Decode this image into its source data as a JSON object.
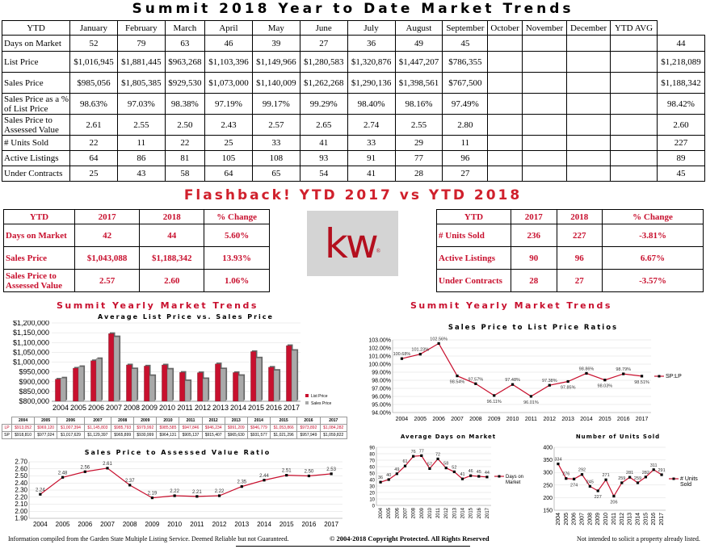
{
  "title": "Summit 2018 Year to Date Market Trends",
  "main_table": {
    "headers": [
      "YTD",
      "January",
      "February",
      "March",
      "April",
      "May",
      "June",
      "July",
      "August",
      "September",
      "October",
      "November",
      "December",
      "YTD AVG"
    ],
    "rows": [
      {
        "label": "Days on Market",
        "cells": [
          "52",
          "79",
          "63",
          "46",
          "39",
          "27",
          "36",
          "49",
          "45",
          "",
          "",
          "",
          ""
        ],
        "avg": "44"
      },
      {
        "label": "List Price",
        "cells": [
          "$1,016,945",
          "$1,881,445",
          "$963,268",
          "$1,103,396",
          "$1,149,966",
          "$1,280,583",
          "$1,320,876",
          "$1,447,207",
          "$786,355",
          "",
          "",
          "",
          ""
        ],
        "avg": "$1,218,089"
      },
      {
        "label": "Sales Price",
        "cells": [
          "$985,056",
          "$1,805,385",
          "$929,530",
          "$1,073,000",
          "$1,140,009",
          "$1,262,268",
          "$1,290,136",
          "$1,398,561",
          "$767,500",
          "",
          "",
          "",
          ""
        ],
        "avg": "$1,188,342"
      },
      {
        "label": "Sales Price as a % of List Price",
        "cells": [
          "98.63%",
          "97.03%",
          "98.38%",
          "97.19%",
          "99.17%",
          "99.29%",
          "98.40%",
          "98.16%",
          "97.49%",
          "",
          "",
          "",
          ""
        ],
        "avg": "98.42%"
      },
      {
        "label": "Sales Price to Assessed Value",
        "cells": [
          "2.61",
          "2.55",
          "2.50",
          "2.43",
          "2.57",
          "2.65",
          "2.74",
          "2.55",
          "2.80",
          "",
          "",
          "",
          ""
        ],
        "avg": "2.60"
      },
      {
        "label": "# Units Sold",
        "cells": [
          "22",
          "11",
          "22",
          "25",
          "33",
          "41",
          "33",
          "29",
          "11",
          "",
          "",
          "",
          ""
        ],
        "avg": "227"
      },
      {
        "label": "Active Listings",
        "cells": [
          "64",
          "86",
          "81",
          "105",
          "108",
          "93",
          "91",
          "77",
          "96",
          "",
          "",
          "",
          ""
        ],
        "avg": "89"
      },
      {
        "label": "Under Contracts",
        "cells": [
          "25",
          "43",
          "58",
          "64",
          "65",
          "54",
          "41",
          "28",
          "27",
          "",
          "",
          "",
          ""
        ],
        "avg": "45"
      }
    ]
  },
  "flashback_title": "Flashback!  YTD 2017 vs YTD 2018",
  "fb_left": {
    "headers": [
      "YTD",
      "2017",
      "2018",
      "% Change"
    ],
    "rows": [
      [
        "Days on Market",
        "42",
        "44",
        "5.60%"
      ],
      [
        "Sales Price",
        "$1,043,088",
        "$1,188,342",
        "13.93%"
      ],
      [
        "Sales Price to Assessed Value",
        "2.57",
        "2.60",
        "1.06%"
      ]
    ]
  },
  "fb_right": {
    "headers": [
      "YTD",
      "2017",
      "2018",
      "% Change"
    ],
    "rows": [
      [
        "# Units Sold",
        "236",
        "227",
        "-3.81%"
      ],
      [
        "Active Listings",
        "90",
        "96",
        "6.67%"
      ],
      [
        "Under Contracts",
        "28",
        "27",
        "-3.57%"
      ]
    ]
  },
  "logo": {
    "text": "kw",
    "color": "#b40f1e"
  },
  "section_left": "Summit Yearly Market Trends",
  "section_right": "Summit Yearly Market Trends",
  "footer": {
    "left": "Information compiled from the Garden State Multiple Listing Service.  Deemed Reliable but not Guaranteed.",
    "center": "© 2004-2018 Copyright Protected.  All Rights Reserved",
    "right": "Not intended to solicit a property already listed."
  },
  "chart_data": [
    {
      "type": "bar",
      "title": "Average List Price vs. Sales Price",
      "categories": [
        "2004",
        "2005",
        "2006",
        "2007",
        "2008",
        "2009",
        "2010",
        "2011",
        "2012",
        "2013",
        "2014",
        "2015",
        "2016",
        "2017"
      ],
      "series": [
        {
          "name": "List Price",
          "values": [
            913052,
            969120,
            1007394,
            1145803,
            985793,
            979992,
            985585,
            947846,
            946234,
            991209,
            946779,
            1053866,
            973892,
            1084282
          ],
          "display": [
            "$913,052",
            "$969,120",
            "$1,007,394",
            "$1,145,803",
            "$985,793",
            "$979,992",
            "$985,585",
            "$947,846",
            "$946,234",
            "$991,209",
            "$946,779",
            "$1,053,866",
            "$973,892",
            "$1,084,282"
          ],
          "color": "#c8102e"
        },
        {
          "name": "Sales Price",
          "values": [
            918810,
            977024,
            1017629,
            1129397,
            965899,
            930999,
            964131,
            905137,
            915407,
            965630,
            931577,
            1021296,
            957949,
            1059822
          ],
          "display": [
            "$918,810",
            "$977,024",
            "$1,017,629",
            "$1,129,397",
            "$965,899",
            "$930,999",
            "$964,131",
            "$905,137",
            "$915,407",
            "$965,630",
            "$931,577",
            "$1,021,296",
            "$957,949",
            "$1,059,822"
          ],
          "color": "#a9a9a9"
        }
      ],
      "ylim": [
        800000,
        1200000
      ],
      "yticks": [
        "$800,000",
        "$850,000",
        "$900,000",
        "$950,000",
        "$1,000,000",
        "$1,050,000",
        "$1,100,000",
        "$1,150,000",
        "$1,200,000"
      ],
      "table_codes": [
        "LP",
        "SP"
      ],
      "legend": "bottom-right"
    },
    {
      "type": "line",
      "title": "Sales Price to Assessed Value Ratio",
      "categories": [
        "2004",
        "2005",
        "2006",
        "2007",
        "2008",
        "2009",
        "2010",
        "2011",
        "2012",
        "2013",
        "2014",
        "2015",
        "2016",
        "2017"
      ],
      "values": [
        2.24,
        2.48,
        2.56,
        2.61,
        2.37,
        2.19,
        2.22,
        2.21,
        2.22,
        2.35,
        2.44,
        2.51,
        2.5,
        2.53
      ],
      "labels": [
        "2.24",
        "2.48",
        "2.56",
        "2.61",
        "2.37",
        "2.19",
        "2.22",
        "2.21",
        "2.22",
        "2.35",
        "2.44",
        "2.51",
        "2.50",
        "2.53"
      ],
      "ylim": [
        1.9,
        2.7
      ],
      "yticks": [
        "1.90",
        "2.00",
        "2.10",
        "2.20",
        "2.30",
        "2.40",
        "2.50",
        "2.60",
        "2.70"
      ]
    },
    {
      "type": "line",
      "title": "Sales Price to List Price Ratios",
      "categories": [
        "2004",
        "2005",
        "2006",
        "2007",
        "2008",
        "2009",
        "2010",
        "2011",
        "2012",
        "2013",
        "2014",
        "2015",
        "2016",
        "2017"
      ],
      "values": [
        100.68,
        101.23,
        102.56,
        98.54,
        97.57,
        96.11,
        97.48,
        96.01,
        97.38,
        97.85,
        98.86,
        98.03,
        98.79,
        98.51
      ],
      "labels": [
        "100.68%",
        "101.23%",
        "102.56%",
        "98.54%",
        "97.57%",
        "96.11%",
        "97.48%",
        "96.01%",
        "97.38%",
        "97.85%",
        "98.86%",
        "98.03%",
        "98.79%",
        "98.51%"
      ],
      "ylim": [
        94,
        103
      ],
      "yticks": [
        "94.00%",
        "95.00%",
        "96.00%",
        "97.00%",
        "98.00%",
        "99.00%",
        "100.00%",
        "101.00%",
        "102.00%",
        "103.00%"
      ],
      "legend": "SP:LP"
    },
    {
      "type": "line",
      "title": "Average Days on Market",
      "categories": [
        "2004",
        "2005",
        "2006",
        "2007",
        "2008",
        "2009",
        "2010",
        "2011",
        "2012",
        "2013",
        "2014",
        "2015",
        "2016",
        "2017"
      ],
      "values": [
        36,
        40,
        49,
        61,
        76,
        77,
        57,
        72,
        58,
        52,
        41,
        46,
        45,
        44
      ],
      "ylim": [
        0,
        90
      ],
      "yticks": [
        "0",
        "10",
        "20",
        "30",
        "40",
        "50",
        "60",
        "70",
        "80",
        "90"
      ],
      "legend": "Days on Market"
    },
    {
      "type": "line",
      "title": "Number of Units Sold",
      "categories": [
        "2004",
        "2005",
        "2006",
        "2007",
        "2008",
        "2009",
        "2010",
        "2011",
        "2012",
        "2013",
        "2014",
        "2015",
        "2016",
        "2017"
      ],
      "values": [
        334,
        276,
        274,
        292,
        245,
        227,
        271,
        206,
        259,
        281,
        259,
        282,
        311,
        291
      ],
      "ylim": [
        150,
        400
      ],
      "yticks": [
        "150",
        "200",
        "250",
        "300",
        "350",
        "400"
      ],
      "legend": "# Units Sold"
    }
  ]
}
